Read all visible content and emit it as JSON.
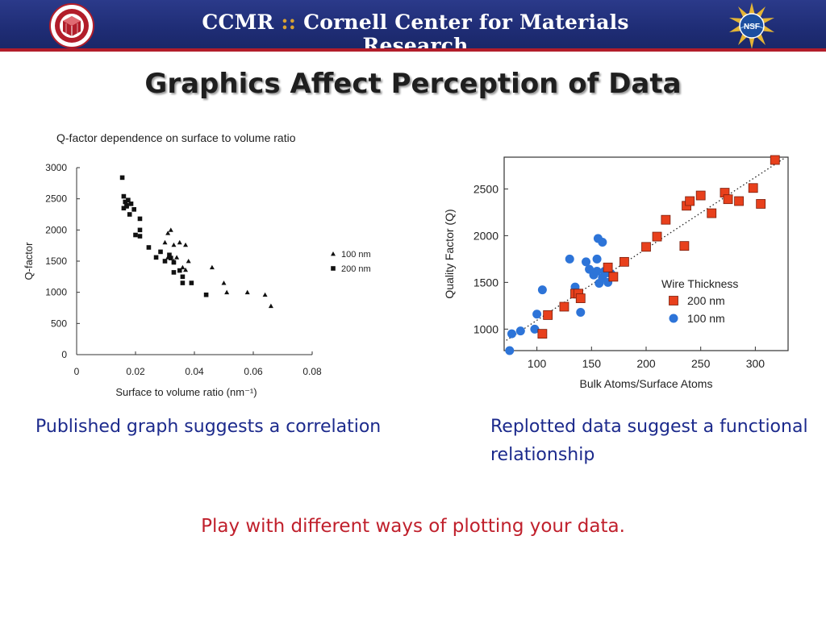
{
  "header": {
    "title_abbr": "CCMR",
    "title_sep": "::",
    "title_name": "Cornell Center for Materials Research",
    "left_logo_icon": "cornell-ccmr-seal-icon",
    "right_logo_icon": "nsf-logo-icon",
    "colors": {
      "bar": "#1e2c74",
      "rule": "#b21d2a"
    }
  },
  "slide": {
    "title": "Graphics Affect Perception of Data",
    "caption_left": "Published graph suggests a correlation",
    "caption_right": "Replotted data suggest a functional relationship",
    "bottom_note": "Play with different ways of plotting your data."
  },
  "chart_data": [
    {
      "type": "scatter",
      "title": "Q-factor dependence on surface to volume ratio",
      "xlabel": "Surface to volume ratio (nm⁻¹)",
      "ylabel": "Q-factor",
      "xlim": [
        0,
        0.08
      ],
      "ylim": [
        0,
        3000
      ],
      "xticks": [
        "0",
        "0.02",
        "0.04",
        "0.06",
        "0.08"
      ],
      "yticks": [
        "0",
        "500",
        "1000",
        "1500",
        "2000",
        "2500",
        "3000"
      ],
      "grid": false,
      "legend": "right",
      "series": [
        {
          "name": "100 nm",
          "marker": "triangle",
          "points": [
            [
              0.031,
              1950
            ],
            [
              0.032,
              2000
            ],
            [
              0.03,
              1800
            ],
            [
              0.033,
              1760
            ],
            [
              0.035,
              1800
            ],
            [
              0.037,
              1760
            ],
            [
              0.031,
              1560
            ],
            [
              0.033,
              1500
            ],
            [
              0.034,
              1560
            ],
            [
              0.036,
              1400
            ],
            [
              0.038,
              1500
            ],
            [
              0.037,
              1360
            ],
            [
              0.046,
              1400
            ],
            [
              0.05,
              1150
            ],
            [
              0.051,
              1000
            ],
            [
              0.058,
              1000
            ],
            [
              0.064,
              960
            ],
            [
              0.066,
              780
            ]
          ]
        },
        {
          "name": "200 nm",
          "marker": "square",
          "points": [
            [
              0.0155,
              2840
            ],
            [
              0.016,
              2540
            ],
            [
              0.0165,
              2450
            ],
            [
              0.017,
              2400
            ],
            [
              0.0175,
              2480
            ],
            [
              0.016,
              2350
            ],
            [
              0.017,
              2380
            ],
            [
              0.0185,
              2420
            ],
            [
              0.0195,
              2330
            ],
            [
              0.018,
              2250
            ],
            [
              0.0215,
              2180
            ],
            [
              0.02,
              1920
            ],
            [
              0.0215,
              2000
            ],
            [
              0.0215,
              1900
            ],
            [
              0.0245,
              1720
            ],
            [
              0.027,
              1560
            ],
            [
              0.0285,
              1650
            ],
            [
              0.03,
              1500
            ],
            [
              0.0315,
              1600
            ],
            [
              0.032,
              1550
            ],
            [
              0.033,
              1480
            ],
            [
              0.033,
              1320
            ],
            [
              0.035,
              1350
            ],
            [
              0.036,
              1250
            ],
            [
              0.036,
              1150
            ],
            [
              0.039,
              1150
            ],
            [
              0.044,
              960
            ]
          ]
        }
      ]
    },
    {
      "type": "scatter",
      "title": "",
      "xlabel": "Bulk Atoms/Surface Atoms",
      "ylabel": "Quality Factor (Q)",
      "xlim": [
        70,
        330
      ],
      "ylim": [
        770,
        2840
      ],
      "xticks": [
        "100",
        "150",
        "200",
        "250",
        "300"
      ],
      "yticks": [
        "1000",
        "1500",
        "2000",
        "2500"
      ],
      "grid": false,
      "legend": "bottom-right",
      "legend_title": "Wire Thickness",
      "trendline": "dotted",
      "series": [
        {
          "name": "200 nm",
          "color": "#e8401c",
          "marker": "square",
          "points": [
            [
              105,
              950
            ],
            [
              110,
              1150
            ],
            [
              125,
              1240
            ],
            [
              135,
              1380
            ],
            [
              138,
              1380
            ],
            [
              140,
              1330
            ],
            [
              165,
              1660
            ],
            [
              170,
              1560
            ],
            [
              180,
              1720
            ],
            [
              200,
              1880
            ],
            [
              210,
              1990
            ],
            [
              218,
              2170
            ],
            [
              235,
              1890
            ],
            [
              237,
              2320
            ],
            [
              240,
              2370
            ],
            [
              250,
              2430
            ],
            [
              260,
              2240
            ],
            [
              272,
              2460
            ],
            [
              275,
              2390
            ],
            [
              285,
              2370
            ],
            [
              298,
              2510
            ],
            [
              305,
              2340
            ],
            [
              318,
              2810
            ]
          ]
        },
        {
          "name": "100 nm",
          "color": "#2d74d8",
          "marker": "circle",
          "points": [
            [
              75,
              770
            ],
            [
              77,
              950
            ],
            [
              85,
              980
            ],
            [
              98,
              1000
            ],
            [
              100,
              1160
            ],
            [
              105,
              1420
            ],
            [
              130,
              1750
            ],
            [
              135,
              1450
            ],
            [
              138,
              1380
            ],
            [
              140,
              1180
            ],
            [
              145,
              1720
            ],
            [
              148,
              1640
            ],
            [
              152,
              1580
            ],
            [
              155,
              1620
            ],
            [
              155,
              1750
            ],
            [
              156,
              1970
            ],
            [
              157,
              1490
            ],
            [
              160,
              1930
            ],
            [
              160,
              1550
            ],
            [
              162,
              1620
            ],
            [
              163,
              1600
            ],
            [
              165,
              1500
            ],
            [
              168,
              1590
            ]
          ]
        }
      ]
    }
  ]
}
